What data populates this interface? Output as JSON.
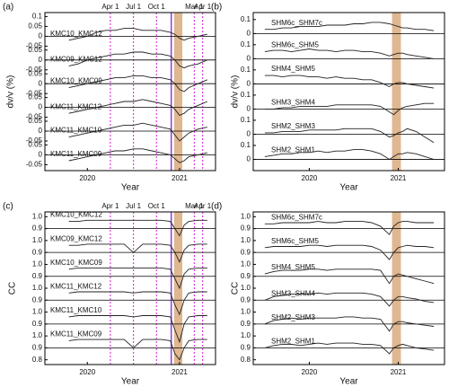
{
  "chart_data": [
    {
      "type": "line",
      "panel_label": "(a)",
      "x_label": "Year",
      "y_label": "dv/v (%)",
      "x": [
        2019.8,
        2019.9,
        2020.0,
        2020.1,
        2020.2,
        2020.3,
        2020.4,
        2020.5,
        2020.6,
        2020.7,
        2020.8,
        2020.9,
        2020.95,
        2021.0,
        2021.05,
        2021.1,
        2021.2,
        2021.3
      ],
      "xlim": [
        2019.54,
        2021.39
      ],
      "xticks": [
        2020,
        2021
      ],
      "ylim": [
        -0.68,
        0.12
      ],
      "yticks": [
        0.1,
        0.05,
        0,
        -0.05,
        {
          "value": -0.07,
          "label": "0.05"
        },
        {
          "value": -0.12,
          "label": "0"
        },
        {
          "value": -0.17,
          "label": "-0.05"
        },
        {
          "value": -0.19,
          "label": "0.05"
        },
        {
          "value": -0.24,
          "label": "0"
        },
        {
          "value": -0.29,
          "label": "-0.05"
        },
        {
          "value": -0.31,
          "label": "0.05"
        },
        {
          "value": -0.36,
          "label": "0"
        },
        {
          "value": -0.41,
          "label": "-0.05"
        },
        {
          "value": -0.43,
          "label": "0.05"
        },
        {
          "value": -0.48,
          "label": "0"
        },
        {
          "value": -0.53,
          "label": "-0.05"
        },
        {
          "value": -0.55,
          "label": "0.05"
        },
        {
          "value": -0.6,
          "label": "0"
        },
        {
          "value": -0.65,
          "label": "-0.05"
        }
      ],
      "hlines": [
        0,
        -0.12,
        -0.24,
        -0.36,
        -0.48,
        -0.6
      ],
      "band": [
        2020.94,
        2021.03
      ],
      "band_color": "#d9aa7c",
      "vlines": [
        {
          "value": 2020.25,
          "label": "Apr 1"
        },
        {
          "value": 2020.5,
          "label": "Jul 1"
        },
        {
          "value": 2020.75,
          "label": "Oct 1"
        },
        {
          "value": 2021.16,
          "label": "Mar 1"
        },
        {
          "value": 2021.25,
          "label": "Apr 1"
        }
      ],
      "vline_color": "#e03ce0",
      "event_line": 2020.91,
      "event_color": "#8a3fe0",
      "series": [
        {
          "name": "KMC10_KMC12",
          "color": "#222222",
          "values": [
            -0.02,
            -0.01,
            0.0,
            0.02,
            0.03,
            0.03,
            0.04,
            0.04,
            0.03,
            0.03,
            0.03,
            0.02,
            0.01,
            -0.01,
            -0.02,
            -0.01,
            0.0,
            0.01
          ]
        },
        {
          "name": "KMC09_KMC12",
          "color": "#222222",
          "values": [
            -0.15,
            -0.14,
            -0.12,
            -0.11,
            -0.1,
            -0.09,
            -0.09,
            -0.08,
            -0.08,
            -0.09,
            -0.09,
            -0.1,
            -0.12,
            -0.15,
            -0.16,
            -0.15,
            -0.14,
            -0.12
          ]
        },
        {
          "name": "KMC10_KMC09",
          "color": "#222222",
          "values": [
            -0.26,
            -0.25,
            -0.24,
            -0.23,
            -0.22,
            -0.21,
            -0.21,
            -0.2,
            -0.2,
            -0.21,
            -0.21,
            -0.22,
            -0.24,
            -0.27,
            -0.28,
            -0.26,
            -0.24,
            -0.22
          ]
        },
        {
          "name": "KMC11_KMC12",
          "color": "#222222",
          "values": [
            -0.39,
            -0.38,
            -0.37,
            -0.36,
            -0.35,
            -0.34,
            -0.33,
            -0.33,
            -0.32,
            -0.33,
            -0.34,
            -0.35,
            -0.37,
            -0.4,
            -0.39,
            -0.37,
            -0.35,
            -0.33
          ]
        },
        {
          "name": "KMC11_KMC10",
          "color": "#222222",
          "values": [
            -0.51,
            -0.5,
            -0.49,
            -0.48,
            -0.47,
            -0.46,
            -0.45,
            -0.45,
            -0.44,
            -0.45,
            -0.46,
            -0.47,
            -0.5,
            -0.53,
            -0.51,
            -0.49,
            -0.47,
            -0.46
          ]
        },
        {
          "name": "KMC11_KMC09",
          "color": "#222222",
          "values": [
            -0.63,
            -0.62,
            -0.61,
            -0.6,
            -0.59,
            -0.58,
            -0.58,
            -0.57,
            -0.57,
            -0.58,
            -0.59,
            -0.6,
            -0.62,
            -0.64,
            -0.63,
            -0.61,
            -0.6,
            -0.59
          ]
        }
      ]
    },
    {
      "type": "line",
      "panel_label": "(b)",
      "x_label": "Year",
      "y_label": "dv/v (%)",
      "x": [
        2019.5,
        2019.6,
        2019.7,
        2019.8,
        2019.9,
        2020.0,
        2020.1,
        2020.2,
        2020.3,
        2020.4,
        2020.5,
        2020.6,
        2020.7,
        2020.8,
        2020.9,
        2020.95,
        2021.0,
        2021.05,
        2021.1,
        2021.2,
        2021.3,
        2021.4
      ],
      "xlim": [
        2019.37,
        2021.52
      ],
      "xticks": [
        2020,
        2021
      ],
      "ylim": [
        -0.98,
        0.15
      ],
      "yticks": [
        0.1,
        0,
        {
          "value": -0.08,
          "label": "0.1"
        },
        {
          "value": -0.18,
          "label": "0"
        },
        {
          "value": -0.26,
          "label": "0.1"
        },
        {
          "value": -0.36,
          "label": "0"
        },
        {
          "value": -0.44,
          "label": "0.1"
        },
        {
          "value": -0.54,
          "label": "0"
        },
        {
          "value": -0.62,
          "label": "0.1"
        },
        {
          "value": -0.72,
          "label": "0"
        },
        {
          "value": -0.8,
          "label": "0.1"
        },
        {
          "value": -0.9,
          "label": "0"
        }
      ],
      "hlines": [
        0,
        -0.18,
        -0.36,
        -0.54,
        -0.72,
        -0.9
      ],
      "band": [
        2020.93,
        2021.03
      ],
      "band_color": "#d9aa7c",
      "series": [
        {
          "name": "SHM6c_SHM7c",
          "color": "#222222",
          "values": [
            0.03,
            0.03,
            0.04,
            0.04,
            0.05,
            0.05,
            0.05,
            0.06,
            0.06,
            0.06,
            0.07,
            0.07,
            0.08,
            0.08,
            0.07,
            0.06,
            0.05,
            0.04,
            0.04,
            0.03,
            0.03,
            0.02
          ]
        },
        {
          "name": "SHM6c_SHM5",
          "color": "#222222",
          "values": [
            -0.13,
            -0.12,
            -0.12,
            -0.13,
            -0.12,
            -0.11,
            -0.12,
            -0.12,
            -0.13,
            -0.12,
            -0.12,
            -0.13,
            -0.13,
            -0.14,
            -0.16,
            -0.15,
            -0.14,
            -0.14,
            -0.15,
            -0.16,
            -0.17,
            -0.18
          ]
        },
        {
          "name": "SHM4_SHM5",
          "color": "#222222",
          "values": [
            -0.3,
            -0.3,
            -0.31,
            -0.3,
            -0.3,
            -0.31,
            -0.31,
            -0.32,
            -0.31,
            -0.32,
            -0.32,
            -0.33,
            -0.33,
            -0.35,
            -0.38,
            -0.36,
            -0.35,
            -0.35,
            -0.36,
            -0.37,
            -0.38,
            -0.39
          ]
        },
        {
          "name": "SHM3_SHM4",
          "color": "#222222",
          "values": [
            -0.54,
            -0.54,
            -0.53,
            -0.53,
            -0.52,
            -0.52,
            -0.52,
            -0.52,
            -0.51,
            -0.51,
            -0.51,
            -0.51,
            -0.51,
            -0.52,
            -0.56,
            -0.58,
            -0.55,
            -0.53,
            -0.52,
            -0.51,
            -0.5,
            -0.5
          ]
        },
        {
          "name": "SHM2_SHM3",
          "color": "#222222",
          "values": [
            -0.71,
            -0.71,
            -0.7,
            -0.7,
            -0.7,
            -0.69,
            -0.69,
            -0.69,
            -0.69,
            -0.68,
            -0.68,
            -0.68,
            -0.68,
            -0.7,
            -0.74,
            -0.73,
            -0.71,
            -0.7,
            -0.68,
            -0.7,
            -0.74,
            -0.78
          ]
        },
        {
          "name": "SHM2_SHM1",
          "color": "#222222",
          "values": [
            -0.88,
            -0.87,
            -0.86,
            -0.86,
            -0.85,
            -0.85,
            -0.84,
            -0.85,
            -0.84,
            -0.84,
            -0.83,
            -0.83,
            -0.84,
            -0.86,
            -0.9,
            -0.88,
            -0.86,
            -0.86,
            -0.85,
            -0.86,
            -0.88,
            -0.9
          ]
        }
      ]
    },
    {
      "type": "line",
      "panel_label": "(c)",
      "x_label": "Year",
      "y_label": "CC",
      "x": [
        2019.8,
        2019.9,
        2020.0,
        2020.1,
        2020.2,
        2020.3,
        2020.4,
        2020.5,
        2020.6,
        2020.7,
        2020.8,
        2020.9,
        2020.95,
        2021.0,
        2021.05,
        2021.1,
        2021.2,
        2021.3
      ],
      "xlim": [
        2019.54,
        2021.39
      ],
      "xticks": [
        2020,
        2021
      ],
      "ylim": [
        -0.24,
        1.04
      ],
      "yticks": [
        {
          "value": 1,
          "label": "1.0"
        },
        0.9,
        {
          "value": 0.8,
          "label": "1.0"
        },
        {
          "value": 0.7,
          "label": "0.9"
        },
        {
          "value": 0.6,
          "label": "1.0"
        },
        {
          "value": 0.5,
          "label": "0.9"
        },
        {
          "value": 0.4,
          "label": "1.0"
        },
        {
          "value": 0.3,
          "label": "0.9"
        },
        {
          "value": 0.2,
          "label": "1.0"
        },
        {
          "value": 0.1,
          "label": "0.9"
        },
        {
          "value": 0,
          "label": "1.0"
        },
        {
          "value": -0.1,
          "label": "0.9"
        },
        {
          "value": -0.2,
          "label": "0.8"
        }
      ],
      "hlines": [
        0.9,
        0.7,
        0.5,
        0.3,
        0.1,
        -0.1
      ],
      "band": [
        2020.94,
        2021.03
      ],
      "band_color": "#d9aa7c",
      "vlines": [
        {
          "value": 2020.25,
          "label": "Apr 1"
        },
        {
          "value": 2020.5,
          "label": "Jul 1"
        },
        {
          "value": 2020.75,
          "label": "Oct 1"
        },
        {
          "value": 2021.16,
          "label": "Mar 1"
        },
        {
          "value": 2021.25,
          "label": "Apr 1"
        }
      ],
      "vline_color": "#e03ce0",
      "event_line": 2020.91,
      "event_color": "#8a3fe0",
      "series": [
        {
          "name": "KMC10_KMC12",
          "color": "#222222",
          "values": [
            0.96,
            0.96,
            0.97,
            0.97,
            0.97,
            0.97,
            0.97,
            0.97,
            0.97,
            0.97,
            0.97,
            0.96,
            0.9,
            0.84,
            0.93,
            0.96,
            0.97,
            0.97
          ]
        },
        {
          "name": "KMC09_KMC12",
          "color": "#222222",
          "values": [
            0.76,
            0.76,
            0.77,
            0.77,
            0.77,
            0.77,
            0.77,
            0.7,
            0.77,
            0.77,
            0.77,
            0.76,
            0.7,
            0.62,
            0.72,
            0.76,
            0.77,
            0.77
          ]
        },
        {
          "name": "KMC10_KMC09",
          "color": "#222222",
          "values": [
            0.56,
            0.57,
            0.57,
            0.57,
            0.57,
            0.57,
            0.57,
            0.57,
            0.57,
            0.57,
            0.57,
            0.56,
            0.48,
            0.4,
            0.52,
            0.56,
            0.57,
            0.57
          ]
        },
        {
          "name": "KMC11_KMC12",
          "color": "#222222",
          "values": [
            0.36,
            0.37,
            0.37,
            0.37,
            0.37,
            0.37,
            0.37,
            0.36,
            0.37,
            0.37,
            0.37,
            0.36,
            0.26,
            0.18,
            0.3,
            0.36,
            0.37,
            0.37
          ]
        },
        {
          "name": "KMC11_KMC10",
          "color": "#222222",
          "values": [
            0.16,
            0.17,
            0.17,
            0.17,
            0.17,
            0.17,
            0.17,
            0.16,
            0.17,
            0.17,
            0.17,
            0.16,
            0.05,
            -0.05,
            0.1,
            0.16,
            0.17,
            0.17
          ]
        },
        {
          "name": "KMC11_KMC09",
          "color": "#222222",
          "values": [
            -0.04,
            -0.03,
            -0.03,
            -0.03,
            -0.03,
            -0.03,
            -0.03,
            -0.1,
            -0.03,
            -0.03,
            -0.03,
            -0.04,
            -0.15,
            -0.2,
            -0.1,
            -0.04,
            -0.03,
            -0.03
          ]
        }
      ]
    },
    {
      "type": "line",
      "panel_label": "(d)",
      "x_label": "Year",
      "y_label": "CC",
      "x": [
        2019.5,
        2019.6,
        2019.7,
        2019.8,
        2019.9,
        2020.0,
        2020.1,
        2020.2,
        2020.3,
        2020.4,
        2020.5,
        2020.6,
        2020.7,
        2020.8,
        2020.9,
        2020.95,
        2021.0,
        2021.05,
        2021.1,
        2021.2,
        2021.3,
        2021.4
      ],
      "xlim": [
        2019.37,
        2021.52
      ],
      "xticks": [
        2020,
        2021
      ],
      "ylim": [
        -0.24,
        1.04
      ],
      "yticks": [
        {
          "value": 1,
          "label": "1.0"
        },
        0.9,
        {
          "value": 0.8,
          "label": "1.0"
        },
        {
          "value": 0.7,
          "label": "0.9"
        },
        {
          "value": 0.6,
          "label": "1.0"
        },
        {
          "value": 0.5,
          "label": "0.9"
        },
        {
          "value": 0.4,
          "label": "1.0"
        },
        {
          "value": 0.3,
          "label": "0.9"
        },
        {
          "value": 0.2,
          "label": "1.0"
        },
        {
          "value": 0.1,
          "label": "0.9"
        },
        {
          "value": 0,
          "label": "1.0"
        },
        {
          "value": -0.1,
          "label": "0.9"
        },
        {
          "value": -0.2,
          "label": "0.8"
        }
      ],
      "hlines": [
        0.9,
        0.7,
        0.5,
        0.3,
        0.1,
        -0.1
      ],
      "band": [
        2020.93,
        2021.03
      ],
      "band_color": "#d9aa7c",
      "series": [
        {
          "name": "SHM6c_SHM7c",
          "color": "#222222",
          "values": [
            0.94,
            0.94,
            0.95,
            0.95,
            0.95,
            0.95,
            0.96,
            0.95,
            0.95,
            0.96,
            0.96,
            0.96,
            0.95,
            0.92,
            0.85,
            0.92,
            0.95,
            0.96,
            0.96,
            0.95,
            0.95,
            0.95
          ]
        },
        {
          "name": "SHM6c_SHM5",
          "color": "#222222",
          "values": [
            0.74,
            0.75,
            0.75,
            0.75,
            0.75,
            0.76,
            0.76,
            0.75,
            0.76,
            0.76,
            0.76,
            0.76,
            0.75,
            0.72,
            0.64,
            0.7,
            0.74,
            0.75,
            0.76,
            0.75,
            0.75,
            0.74
          ]
        },
        {
          "name": "SHM4_SHM5",
          "color": "#222222",
          "values": [
            0.52,
            0.54,
            0.55,
            0.55,
            0.55,
            0.56,
            0.56,
            0.55,
            0.56,
            0.56,
            0.56,
            0.56,
            0.56,
            0.55,
            0.44,
            0.5,
            0.52,
            0.51,
            0.5,
            0.48,
            0.46,
            0.44
          ]
        },
        {
          "name": "SHM3_SHM4",
          "color": "#222222",
          "values": [
            0.3,
            0.33,
            0.34,
            0.35,
            0.35,
            0.35,
            0.36,
            0.35,
            0.36,
            0.36,
            0.36,
            0.36,
            0.35,
            0.33,
            0.25,
            0.3,
            0.33,
            0.33,
            0.32,
            0.31,
            0.29,
            0.28
          ]
        },
        {
          "name": "SHM2_SHM3",
          "color": "#222222",
          "values": [
            0.1,
            0.13,
            0.14,
            0.15,
            0.14,
            0.15,
            0.15,
            0.15,
            0.15,
            0.16,
            0.16,
            0.15,
            0.15,
            0.14,
            0.04,
            0.1,
            0.12,
            0.12,
            0.11,
            0.1,
            0.09,
            0.08
          ]
        },
        {
          "name": "SHM2_SHM1",
          "color": "#222222",
          "values": [
            -0.1,
            -0.08,
            -0.07,
            -0.07,
            -0.08,
            -0.07,
            -0.06,
            -0.07,
            -0.06,
            -0.06,
            -0.06,
            -0.07,
            -0.07,
            -0.08,
            -0.15,
            -0.1,
            -0.08,
            -0.07,
            -0.08,
            -0.1,
            -0.11,
            -0.12
          ]
        }
      ]
    }
  ]
}
